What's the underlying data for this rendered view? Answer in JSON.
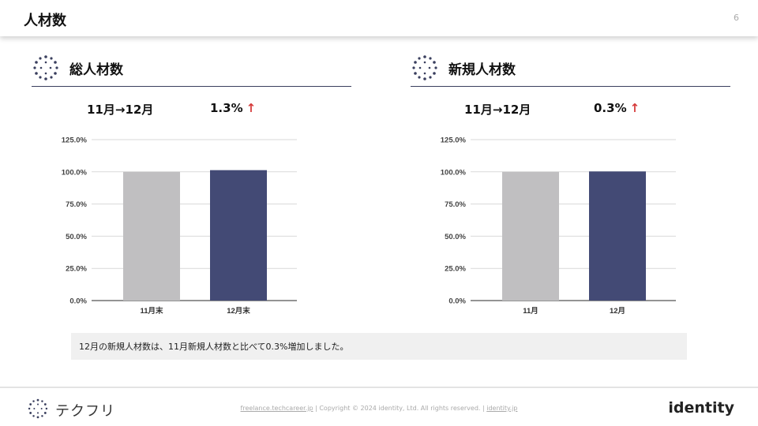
{
  "header": {
    "title": "人材数",
    "page_number": "6"
  },
  "panels": [
    {
      "title": "総人材数",
      "period": "11月→12月",
      "change": "1.3%",
      "change_arrow": "↑"
    },
    {
      "title": "新規人材数",
      "period": "11月→12月",
      "change": "0.3%",
      "change_arrow": "↑"
    }
  ],
  "chart_data": [
    {
      "type": "bar",
      "categories": [
        "11月末",
        "12月末"
      ],
      "values": [
        100.0,
        101.3
      ],
      "yticks": [
        "0.0%",
        "25.0%",
        "50.0%",
        "75.0%",
        "100.0%",
        "125.0%"
      ],
      "ylim": [
        0,
        125
      ],
      "grid": true,
      "colors": [
        "#c0bfc1",
        "#434a75"
      ]
    },
    {
      "type": "bar",
      "categories": [
        "11月",
        "12月"
      ],
      "values": [
        100.0,
        100.3
      ],
      "yticks": [
        "0.0%",
        "25.0%",
        "50.0%",
        "75.0%",
        "100.0%",
        "125.0%"
      ],
      "ylim": [
        0,
        125
      ],
      "grid": true,
      "colors": [
        "#c0bfc1",
        "#434a75"
      ]
    }
  ],
  "note": "12月の新規人材数は、11月新規人材数と比べて0.3%増加しました。",
  "footer": {
    "brand": "テクフリ",
    "link1": "freelance.techcareer.jp",
    "copyright": "| Copyright © 2024 identity, Ltd. All rights reserved. |",
    "link2": "identity.jp",
    "logo_prefix": "",
    "logo_text": "identity"
  },
  "colors": {
    "accent": "#d63a3a",
    "navy": "#434a75",
    "gray_bar": "#c0bfc1"
  }
}
